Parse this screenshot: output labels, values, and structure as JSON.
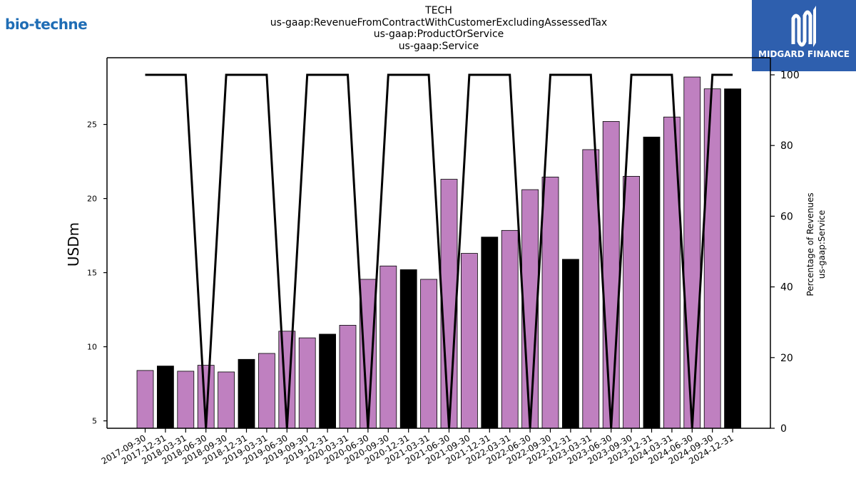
{
  "title_lines": [
    "TECH",
    "us-gaap:RevenueFromContractWithCustomerExcludingAssessedTax",
    "us-gaap:ProductOrService",
    "us-gaap:Service"
  ],
  "logos": {
    "left": "bio-techne",
    "right": "MIDGARD FINANCE"
  },
  "colors": {
    "bar_default": "#bf80c0",
    "bar_highlight": "#000000",
    "line": "#000000",
    "logo_left": "#1f6db5",
    "logo_right_bg": "#2e5fae"
  },
  "chart_data": {
    "type": "bar",
    "categories": [
      "2017-09-30",
      "2017-12-31",
      "2018-03-31",
      "2018-06-30",
      "2018-09-30",
      "2018-12-31",
      "2019-03-31",
      "2019-06-30",
      "2019-09-30",
      "2019-12-31",
      "2020-03-31",
      "2020-06-30",
      "2020-09-30",
      "2020-12-31",
      "2021-03-31",
      "2021-06-30",
      "2021-09-30",
      "2021-12-31",
      "2022-03-31",
      "2022-06-30",
      "2022-09-30",
      "2022-12-31",
      "2023-03-31",
      "2023-06-30",
      "2023-09-30",
      "2023-12-31",
      "2024-03-31",
      "2024-06-30",
      "2024-09-30",
      "2024-12-31"
    ],
    "values": [
      8.4,
      8.7,
      8.35,
      8.75,
      8.3,
      9.15,
      9.55,
      11.05,
      10.6,
      10.85,
      11.45,
      14.55,
      15.45,
      15.2,
      14.55,
      21.3,
      16.3,
      17.4,
      17.85,
      20.6,
      21.45,
      15.9,
      23.3,
      25.2,
      21.5,
      24.15,
      25.5,
      28.2,
      27.4,
      27.4
    ],
    "highlight": [
      false,
      true,
      false,
      false,
      false,
      true,
      false,
      false,
      false,
      true,
      false,
      false,
      false,
      true,
      false,
      false,
      false,
      true,
      false,
      false,
      false,
      true,
      false,
      false,
      false,
      true,
      false,
      false,
      false,
      true
    ],
    "percentage": [
      100,
      100,
      100,
      0,
      100,
      100,
      100,
      0,
      100,
      100,
      100,
      0,
      100,
      100,
      100,
      0,
      100,
      100,
      100,
      0,
      100,
      100,
      100,
      0,
      100,
      100,
      100,
      0,
      100,
      100
    ],
    "ylabel": "USDm",
    "ylim": [
      4.5,
      29.5
    ],
    "yticks": [
      5,
      10,
      15,
      20,
      25
    ],
    "y2label_lines": [
      "Percentage of Revenues",
      "us-gaap:Service"
    ],
    "y2lim": [
      0,
      100
    ],
    "y2ticks": [
      0,
      20,
      40,
      60,
      80,
      100
    ]
  }
}
